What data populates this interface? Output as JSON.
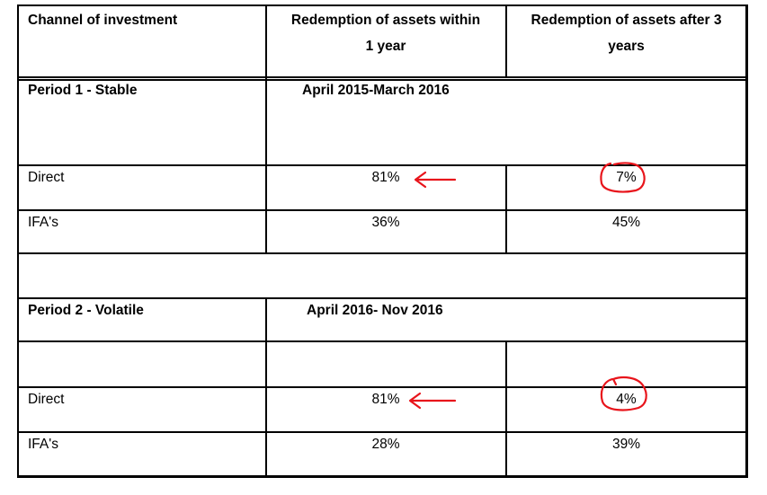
{
  "header": {
    "col1": "Channel of investment",
    "col2": "Redemption  of assets within 1 year",
    "col2_line1": "Redemption  of assets within",
    "col2_line2": "1 year",
    "col3": "Redemption  of assets after 3 years",
    "col3_line1": "Redemption  of assets after 3",
    "col3_line2": "years"
  },
  "period1": {
    "label": "Period 1 - Stable",
    "range": "April 2015-March 2016",
    "rows": [
      {
        "channel": "Direct",
        "within_1_year": "81%",
        "after_3_years": "7%"
      },
      {
        "channel": "IFA's",
        "within_1_year": "36%",
        "after_3_years": "45%"
      }
    ]
  },
  "period2": {
    "label": "Period 2 - Volatile",
    "range": "April 2016- Nov 2016",
    "rows": [
      {
        "channel": "Direct",
        "within_1_year": "81%",
        "after_3_years": "4%"
      },
      {
        "channel": "IFA's",
        "within_1_year": "28%",
        "after_3_years": "39%"
      }
    ]
  },
  "annotations": {
    "arrow_color": "#e8141b",
    "circle_color": "#e8141b"
  }
}
